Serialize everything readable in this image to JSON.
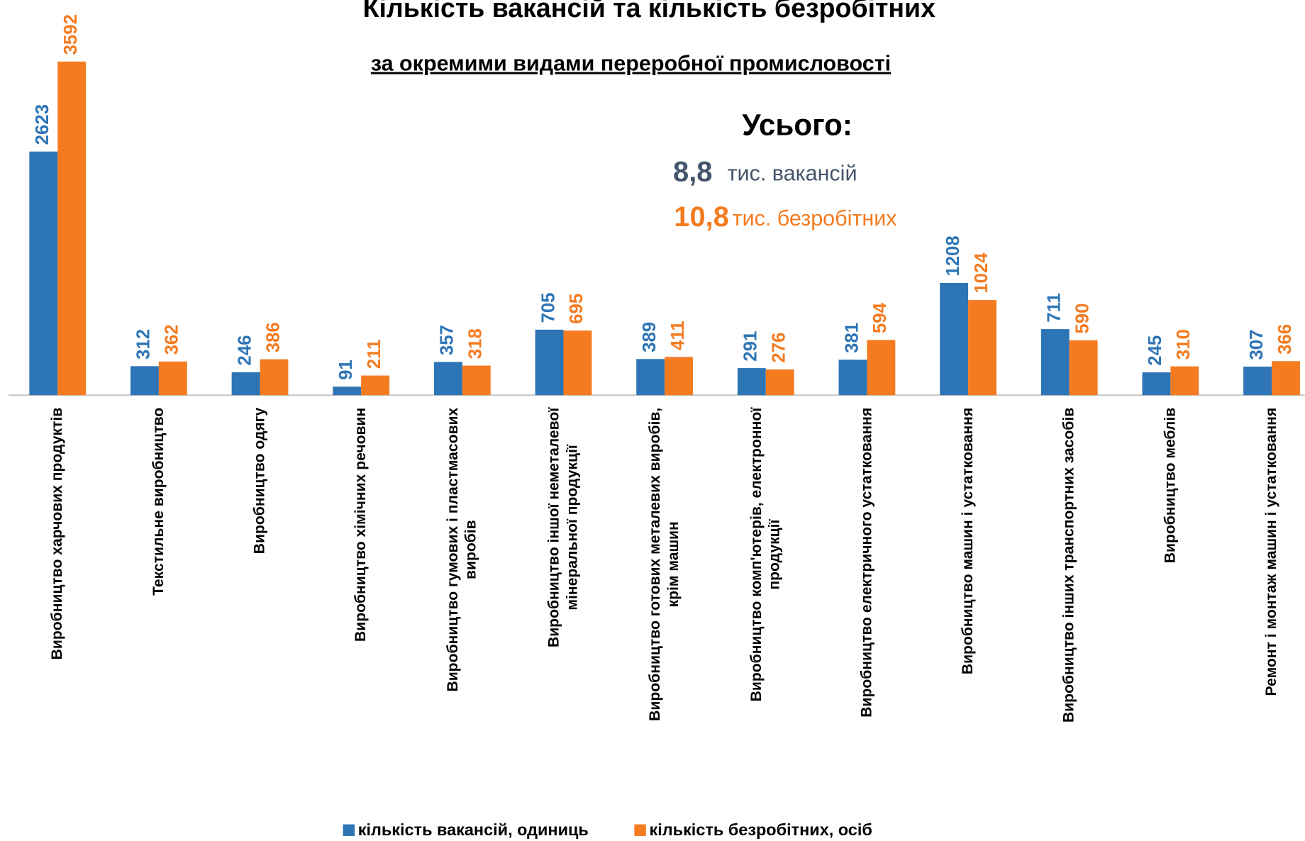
{
  "chart_data": {
    "type": "bar",
    "title": "Кількість вакансій та кількість безробітних",
    "subtitle": "за окремими видами переробної промисловості",
    "annotation": {
      "heading": "Усього:",
      "vacancies_value": "8,8",
      "vacancies_unit": "тис. вакансій",
      "unemployed_value": "10,8",
      "unemployed_unit": "тис. безробітних"
    },
    "categories": [
      "Виробництво харчових продуктів",
      "Текстильне виробництво",
      "Виробництво одягу",
      "Виробництво хімічних речовин",
      "Виробництво гумових і пластмасових виробів",
      "Виробництво іншої неметалевої мінеральної продукції",
      "Виробництво готових металевих виробів, крім машин",
      "Виробництво комп'ютерів, електронної продукції",
      "Виробництво електричного устатковання",
      "Виробництво машин і устатковання",
      "Виробництво інших транспортних засобів",
      "Виробництво меблів",
      "Ремонт і монтаж машин і устатковання"
    ],
    "series": [
      {
        "name": "кількість вакансій, одиниць",
        "color": "#2e75b6",
        "values": [
          2623,
          312,
          246,
          91,
          357,
          705,
          389,
          291,
          381,
          1208,
          711,
          245,
          307
        ]
      },
      {
        "name": "кількість безробітних, осіб",
        "color": "#f47b20",
        "values": [
          3592,
          362,
          386,
          211,
          318,
          695,
          411,
          276,
          594,
          1024,
          590,
          310,
          366
        ]
      }
    ],
    "legend": "bottom"
  }
}
